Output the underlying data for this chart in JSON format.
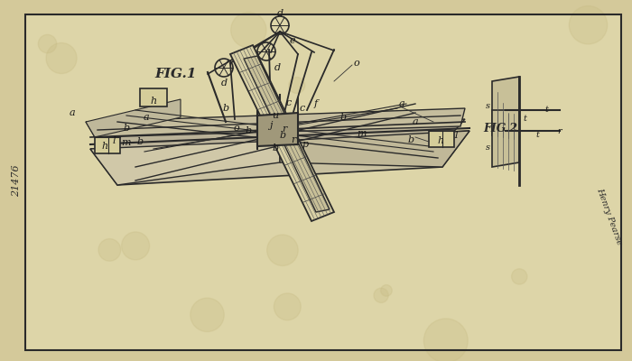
{
  "bg_color": "#d4c99a",
  "paper_color": "#e8ddb0",
  "inner_bg": "#ddd5a8",
  "line_color": "#2a2a2a",
  "light_line": "#555555",
  "hatch_color": "#3a3a3a",
  "fig1_label": "FIG.1",
  "fig2_label": "FIG.2",
  "patent_number": "21476",
  "signature": "Henry Pearse",
  "title_fontsize": 12,
  "label_fontsize": 8
}
